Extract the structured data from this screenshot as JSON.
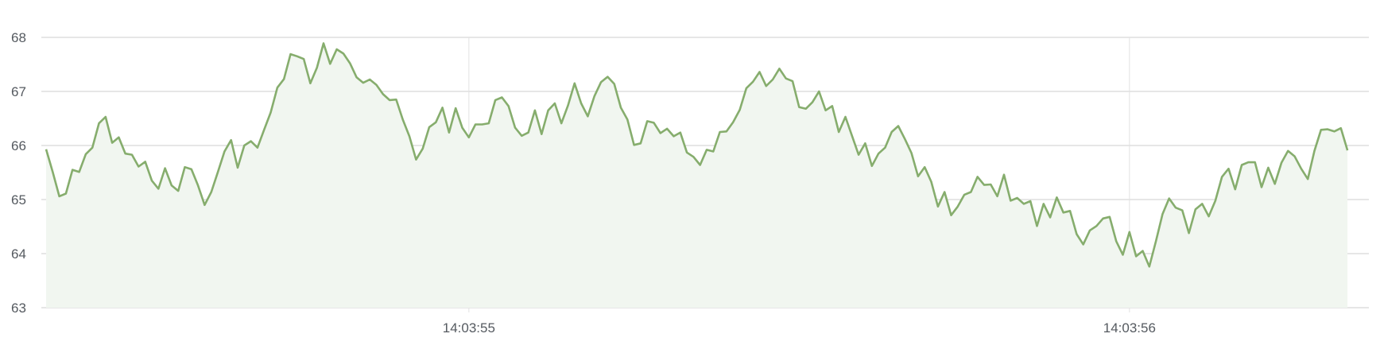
{
  "chart_data": {
    "type": "area",
    "title": "",
    "xlabel": "",
    "ylabel": "",
    "x_start": "14:03:54.36",
    "x_interval_ms": 10,
    "x_ticks": [
      "14:03:55",
      "14:03:56"
    ],
    "y_ticks": [
      "63",
      "64",
      "65",
      "66",
      "67",
      "68"
    ],
    "ylim": [
      63,
      68
    ],
    "grid": true,
    "legend": "none",
    "colors": {
      "line": "#86ad6d",
      "fill": "#f1f6f0",
      "grid": "#e6e6e6"
    },
    "series": [
      {
        "values": [
          65.93,
          65.51,
          65.06,
          65.11,
          65.55,
          65.51,
          65.84,
          65.96,
          66.41,
          66.53,
          66.05,
          66.15,
          65.85,
          65.83,
          65.61,
          65.7,
          65.35,
          65.2,
          65.58,
          65.26,
          65.16,
          65.6,
          65.56,
          65.26,
          64.9,
          65.14,
          65.51,
          65.89,
          66.1,
          65.59,
          66.0,
          66.08,
          65.96,
          66.29,
          66.61,
          67.07,
          67.23,
          67.69,
          67.65,
          67.6,
          67.15,
          67.44,
          67.89,
          67.51,
          67.78,
          67.7,
          67.52,
          67.26,
          67.16,
          67.22,
          67.12,
          66.95,
          66.84,
          66.85,
          66.48,
          66.17,
          65.74,
          65.94,
          66.34,
          66.43,
          66.7,
          66.24,
          66.69,
          66.33,
          66.15,
          66.39,
          66.39,
          66.41,
          66.84,
          66.89,
          66.73,
          66.33,
          66.18,
          66.24,
          66.65,
          66.21,
          66.65,
          66.78,
          66.41,
          66.74,
          67.15,
          66.78,
          66.54,
          66.91,
          67.17,
          67.27,
          67.14,
          66.7,
          66.48,
          66.01,
          66.04,
          66.45,
          66.42,
          66.23,
          66.31,
          66.17,
          66.24,
          65.87,
          65.79,
          65.64,
          65.92,
          65.89,
          66.25,
          66.26,
          66.43,
          66.66,
          67.06,
          67.18,
          67.36,
          67.1,
          67.22,
          67.42,
          67.24,
          67.19,
          66.71,
          66.68,
          66.8,
          67.0,
          66.65,
          66.73,
          66.25,
          66.53,
          66.18,
          65.83,
          66.04,
          65.62,
          65.85,
          65.96,
          66.25,
          66.36,
          66.12,
          65.86,
          65.43,
          65.6,
          65.33,
          64.87,
          65.14,
          64.71,
          64.87,
          65.09,
          65.14,
          65.42,
          65.27,
          65.28,
          65.06,
          65.46,
          64.98,
          65.03,
          64.92,
          64.97,
          64.51,
          64.92,
          64.67,
          65.04,
          64.76,
          64.79,
          64.36,
          64.17,
          64.43,
          64.51,
          64.65,
          64.68,
          64.23,
          63.98,
          64.4,
          63.95,
          64.05,
          63.76,
          64.23,
          64.73,
          65.02,
          64.85,
          64.8,
          64.38,
          64.82,
          64.92,
          64.69,
          64.98,
          65.42,
          65.57,
          65.19,
          65.64,
          65.69,
          65.69,
          65.23,
          65.59,
          65.29,
          65.68,
          65.9,
          65.8,
          65.57,
          65.38,
          65.9,
          66.29,
          66.3,
          66.26,
          66.32,
          65.91
        ]
      }
    ]
  }
}
